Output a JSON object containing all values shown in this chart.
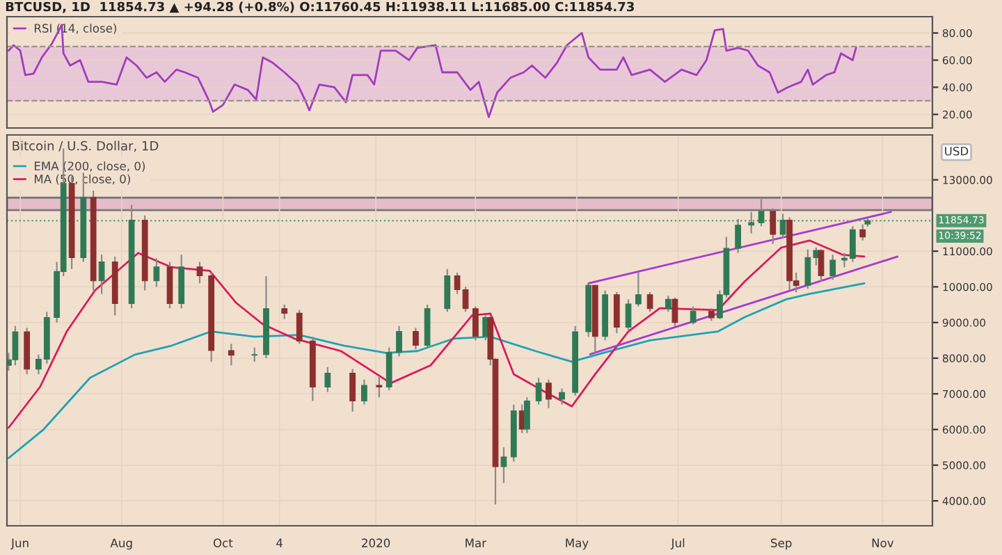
{
  "chart_data": [
    {
      "type": "line",
      "title": "BTCUSD, 1D  11854.73 ▲ +94.28 (+0.8%) O:11760.45 H:11938.11 L:11685.00 C:11854.73",
      "xlim": [
        "2019-05-24",
        "2020-12-01"
      ],
      "ylim": [
        10,
        92
      ],
      "yticks": [
        {
          "value": 20,
          "label": "20.00"
        },
        {
          "value": 40,
          "label": "40.00"
        },
        {
          "value": 60,
          "label": "60.00"
        },
        {
          "value": 80,
          "label": "80.00"
        }
      ],
      "tick_labels": "y",
      "grid": true,
      "legend": "top left",
      "bands": [
        {
          "axis": "y",
          "from": 30,
          "to": 70,
          "color": "#e8c8d6"
        }
      ],
      "ref_lines": [
        {
          "axis": "y",
          "value": 70,
          "line_style": "dashed",
          "color": "#a09090"
        },
        {
          "axis": "y",
          "value": 30,
          "line_style": "dashed",
          "color": "#a09090"
        }
      ],
      "series": [
        {
          "name": "RSI (14, close)",
          "color": "#a23bc0",
          "type": "line",
          "x": [
            "2019-05-25",
            "2019-05-28",
            "2019-06-01",
            "2019-06-04",
            "2019-06-09",
            "2019-06-14",
            "2019-06-20",
            "2019-06-26",
            "2019-06-27",
            "2019-07-01",
            "2019-07-07",
            "2019-07-12",
            "2019-07-20",
            "2019-07-29",
            "2019-08-04",
            "2019-08-10",
            "2019-08-16",
            "2019-08-22",
            "2019-08-27",
            "2019-09-03",
            "2019-09-08",
            "2019-09-16",
            "2019-09-23",
            "2019-09-25",
            "2019-10-01",
            "2019-10-08",
            "2019-10-16",
            "2019-10-21",
            "2019-10-25",
            "2019-10-31",
            "2019-11-07",
            "2019-11-15",
            "2019-11-20",
            "2019-11-22",
            "2019-11-28",
            "2019-12-07",
            "2019-12-14",
            "2019-12-18",
            "2019-12-27",
            "2019-12-31",
            "2020-01-04",
            "2020-01-13",
            "2020-01-21",
            "2020-01-26",
            "2020-02-06",
            "2020-02-10",
            "2020-02-19",
            "2020-02-27",
            "2020-03-03",
            "2020-03-09",
            "2020-03-14",
            "2020-03-22",
            "2020-03-30",
            "2020-04-04",
            "2020-04-12",
            "2020-04-19",
            "2020-04-25",
            "2020-05-04",
            "2020-05-08",
            "2020-05-15",
            "2020-05-25",
            "2020-05-29",
            "2020-06-03",
            "2020-06-14",
            "2020-06-23",
            "2020-07-03",
            "2020-07-12",
            "2020-07-18",
            "2020-07-23",
            "2020-07-28",
            "2020-07-30",
            "2020-08-06",
            "2020-08-12",
            "2020-08-18",
            "2020-08-25",
            "2020-08-30",
            "2020-09-05",
            "2020-09-13",
            "2020-09-17",
            "2020-09-20",
            "2020-09-28",
            "2020-10-03",
            "2020-10-07",
            "2020-10-14",
            "2020-10-16"
          ],
          "values": [
            67,
            71,
            67,
            49,
            50,
            62,
            72,
            86,
            65,
            56,
            60,
            44,
            44,
            42,
            62,
            56,
            47,
            51,
            44,
            53,
            51,
            47,
            29,
            22,
            27,
            42,
            38,
            31,
            62,
            58,
            51,
            42,
            29,
            23,
            42,
            40,
            29,
            49,
            49,
            42,
            67,
            67,
            60,
            69,
            71,
            51,
            51,
            38,
            44,
            18,
            36,
            47,
            51,
            56,
            47,
            58,
            71,
            80,
            62,
            53,
            53,
            62,
            49,
            53,
            44,
            53,
            49,
            60,
            82,
            83,
            67,
            69,
            67,
            56,
            51,
            36,
            40,
            44,
            53,
            42,
            49,
            51,
            65,
            60,
            69
          ]
        }
      ]
    },
    {
      "type": "candlestick",
      "title": "Bitcoin / U.S. Dollar, 1D",
      "ylabel": "USD",
      "xlim": [
        "2019-05-24",
        "2020-12-01"
      ],
      "ylim": [
        3300,
        14260
      ],
      "xticks": [
        {
          "value": "2019-06-01",
          "label": "Jun"
        },
        {
          "value": "2019-08-01",
          "label": "Aug"
        },
        {
          "value": "2019-10-01",
          "label": "Oct"
        },
        {
          "value": "2019-11-04",
          "label": "4"
        },
        {
          "value": "2020-01-01",
          "label": "2020"
        },
        {
          "value": "2020-03-01",
          "label": "Mar"
        },
        {
          "value": "2020-05-01",
          "label": "May"
        },
        {
          "value": "2020-07-01",
          "label": "Jul"
        },
        {
          "value": "2020-09-01",
          "label": "Sep"
        },
        {
          "value": "2020-11-01",
          "label": "Nov"
        }
      ],
      "yticks": [
        {
          "value": 4000,
          "label": "4000.00"
        },
        {
          "value": 5000,
          "label": "5000.00"
        },
        {
          "value": 6000,
          "label": "6000.00"
        },
        {
          "value": 7000,
          "label": "7000.00"
        },
        {
          "value": 8000,
          "label": "8000.00"
        },
        {
          "value": 9000,
          "label": "9000.00"
        },
        {
          "value": 10000,
          "label": "10000.00"
        },
        {
          "value": 11000,
          "label": "11000.00"
        },
        {
          "value": 13000,
          "label": "13000.00"
        }
      ],
      "grid": true,
      "legend": "top left",
      "ref_lines": [
        {
          "axis": "y",
          "value": 11854.73,
          "label": "11854.73",
          "line_style": "dotted",
          "color": "#4f9a6e"
        }
      ],
      "bands": [
        {
          "axis": "y",
          "from": 12150,
          "to": 12500,
          "color": "#e6bccb"
        }
      ],
      "annotations": [
        "10:39:52"
      ],
      "x": [
        "2019-05-25",
        "2019-05-29",
        "2019-06-05",
        "2019-06-12",
        "2019-06-17",
        "2019-06-23",
        "2019-06-27",
        "2019-07-02",
        "2019-07-09",
        "2019-07-15",
        "2019-07-20",
        "2019-07-28",
        "2019-08-07",
        "2019-08-15",
        "2019-08-22",
        "2019-08-30",
        "2019-09-06",
        "2019-09-17",
        "2019-09-24",
        "2019-10-06",
        "2019-10-20",
        "2019-10-27",
        "2019-11-07",
        "2019-11-16",
        "2019-11-24",
        "2019-12-03",
        "2019-12-18",
        "2019-12-25",
        "2020-01-03",
        "2020-01-09",
        "2020-01-15",
        "2020-01-25",
        "2020-02-01",
        "2020-02-13",
        "2020-02-19",
        "2020-02-24",
        "2020-03-01",
        "2020-03-07",
        "2020-03-10",
        "2020-03-13",
        "2020-03-18",
        "2020-03-24",
        "2020-03-29",
        "2020-04-01",
        "2020-04-08",
        "2020-04-14",
        "2020-04-22",
        "2020-04-30",
        "2020-05-08",
        "2020-05-12",
        "2020-05-18",
        "2020-05-25",
        "2020-06-01",
        "2020-06-07",
        "2020-06-14",
        "2020-06-25",
        "2020-06-29",
        "2020-07-10",
        "2020-07-21",
        "2020-07-26",
        "2020-07-30",
        "2020-08-06",
        "2020-08-14",
        "2020-08-20",
        "2020-08-27",
        "2020-09-02",
        "2020-09-06",
        "2020-09-10",
        "2020-09-17",
        "2020-09-22",
        "2020-09-25",
        "2020-10-02",
        "2020-10-09",
        "2020-10-14",
        "2020-10-20",
        "2020-10-23"
      ],
      "ohlc": [
        [
          7800,
          8150,
          7650,
          7957
        ],
        [
          7957,
          8900,
          7800,
          8738
        ],
        [
          8738,
          8850,
          7550,
          7695
        ],
        [
          7695,
          8100,
          7550,
          7970
        ],
        [
          7970,
          9300,
          7850,
          9140
        ],
        [
          9140,
          10700,
          9000,
          10430
        ],
        [
          10430,
          13880,
          10300,
          12900
        ],
        [
          12900,
          13100,
          10500,
          10820
        ],
        [
          10820,
          13200,
          10700,
          12510
        ],
        [
          12510,
          12700,
          9900,
          10170
        ],
        [
          10170,
          10900,
          9800,
          10700
        ],
        [
          10700,
          10850,
          9200,
          9530
        ],
        [
          9530,
          12300,
          9400,
          11870
        ],
        [
          11870,
          12000,
          9900,
          10170
        ],
        [
          10170,
          10800,
          10000,
          10560
        ],
        [
          10560,
          10700,
          9400,
          9530
        ],
        [
          9530,
          10900,
          9400,
          10560
        ],
        [
          10560,
          10700,
          10100,
          10310
        ],
        [
          10310,
          10400,
          7900,
          8215
        ],
        [
          8215,
          8400,
          7800,
          8085
        ],
        [
          8085,
          8300,
          7900,
          8100
        ],
        [
          8100,
          10300,
          8000,
          9390
        ],
        [
          9390,
          9500,
          9100,
          9260
        ],
        [
          9260,
          9350,
          8400,
          8480
        ],
        [
          8480,
          8600,
          6800,
          7190
        ],
        [
          7190,
          7750,
          7050,
          7580
        ],
        [
          7580,
          7700,
          6500,
          6800
        ],
        [
          6800,
          7400,
          6700,
          7240
        ],
        [
          7240,
          7500,
          6900,
          7190
        ],
        [
          7190,
          8300,
          7100,
          8160
        ],
        [
          8160,
          8900,
          8050,
          8750
        ],
        [
          8750,
          8850,
          8250,
          8360
        ],
        [
          8360,
          9500,
          8300,
          9390
        ],
        [
          9390,
          10500,
          9300,
          10310
        ],
        [
          10310,
          10400,
          9800,
          9920
        ],
        [
          9920,
          10000,
          9300,
          9390
        ],
        [
          9390,
          9450,
          8500,
          8610
        ],
        [
          8610,
          9200,
          8500,
          9140
        ],
        [
          9140,
          9200,
          7800,
          7970
        ],
        [
          7970,
          8000,
          3900,
          4960
        ],
        [
          4960,
          5500,
          4500,
          5230
        ],
        [
          5230,
          6700,
          5100,
          6520
        ],
        [
          6520,
          6700,
          5900,
          6010
        ],
        [
          6010,
          6900,
          5900,
          6800
        ],
        [
          6800,
          7450,
          6700,
          7300
        ],
        [
          7300,
          7400,
          6600,
          6850
        ],
        [
          6850,
          7150,
          6700,
          7040
        ],
        [
          7040,
          8900,
          6950,
          8740
        ],
        [
          8740,
          10100,
          8600,
          10040
        ],
        [
          10040,
          10050,
          8150,
          8610
        ],
        [
          8610,
          9900,
          8500,
          9780
        ],
        [
          9780,
          9850,
          8700,
          8870
        ],
        [
          8870,
          9650,
          8800,
          9520
        ],
        [
          9520,
          10400,
          9450,
          9780
        ],
        [
          9780,
          9850,
          9300,
          9390
        ],
        [
          9390,
          9750,
          9300,
          9650
        ],
        [
          9650,
          9700,
          8900,
          9000
        ],
        [
          9000,
          9450,
          8950,
          9320
        ],
        [
          9320,
          9400,
          9050,
          9130
        ],
        [
          9130,
          9900,
          9100,
          9780
        ],
        [
          9780,
          11400,
          9700,
          11080
        ],
        [
          11080,
          11900,
          10950,
          11730
        ],
        [
          11730,
          12100,
          11500,
          11800
        ],
        [
          11800,
          12460,
          11700,
          12120
        ],
        [
          12120,
          12200,
          11200,
          11470
        ],
        [
          11470,
          12050,
          11350,
          11870
        ],
        [
          11870,
          11950,
          9900,
          10170
        ],
        [
          10170,
          10400,
          9850,
          10040
        ],
        [
          10040,
          11050,
          9950,
          10820
        ],
        [
          10820,
          11100,
          10600,
          11020
        ],
        [
          11020,
          11050,
          10150,
          10310
        ],
        [
          10310,
          10900,
          10200,
          10750
        ],
        [
          10750,
          10950,
          10550,
          10800
        ],
        [
          10800,
          11700,
          10700,
          11600
        ],
        [
          11600,
          11750,
          11300,
          11400
        ],
        [
          11760.45,
          11938.11,
          11685.0,
          11854.73
        ]
      ],
      "series": [
        {
          "name": "EMA (200, close, 0)",
          "type": "line",
          "color": "#1ea3b4",
          "x": [
            "2019-05-25",
            "2019-06-15",
            "2019-07-13",
            "2019-08-09",
            "2019-08-31",
            "2019-09-24",
            "2019-10-20",
            "2019-11-16",
            "2019-12-13",
            "2020-01-07",
            "2020-01-26",
            "2020-02-17",
            "2020-03-10",
            "2020-04-06",
            "2020-04-28",
            "2020-05-17",
            "2020-06-14",
            "2020-07-25",
            "2020-08-10",
            "2020-09-04",
            "2020-09-18",
            "2020-10-21"
          ],
          "values": [
            5200,
            6000,
            7450,
            8100,
            8350,
            8750,
            8600,
            8650,
            8350,
            8150,
            8200,
            8550,
            8600,
            8200,
            7900,
            8150,
            8500,
            8750,
            9150,
            9650,
            9800,
            10100
          ]
        },
        {
          "name": "MA (50, close, 0)",
          "type": "line",
          "color": "#d81b5a",
          "x": [
            "2019-05-25",
            "2019-06-13",
            "2019-06-29",
            "2019-07-16",
            "2019-08-11",
            "2019-08-31",
            "2019-09-23",
            "2019-10-09",
            "2019-10-25",
            "2019-11-13",
            "2019-12-11",
            "2020-01-10",
            "2020-02-03",
            "2020-02-28",
            "2020-03-10",
            "2020-03-24",
            "2020-04-12",
            "2020-04-28",
            "2020-05-12",
            "2020-06-01",
            "2020-06-20",
            "2020-07-25",
            "2020-08-10",
            "2020-09-01",
            "2020-09-18",
            "2020-10-08",
            "2020-10-21"
          ],
          "values": [
            6050,
            7200,
            8750,
            9900,
            10950,
            10550,
            10450,
            9550,
            8950,
            8550,
            8200,
            7300,
            7800,
            9200,
            9250,
            7550,
            7050,
            6650,
            7550,
            8750,
            9400,
            9350,
            10150,
            11100,
            11300,
            10900,
            10850
          ]
        },
        {
          "type": "line",
          "color": "#a63ad0",
          "x": [
            "2020-05-08",
            "2020-11-06"
          ],
          "values": [
            10100,
            12100
          ]
        },
        {
          "type": "line",
          "color": "#a63ad0",
          "x": [
            "2020-05-09",
            "2020-11-10"
          ],
          "values": [
            8110,
            10850
          ]
        }
      ]
    }
  ]
}
